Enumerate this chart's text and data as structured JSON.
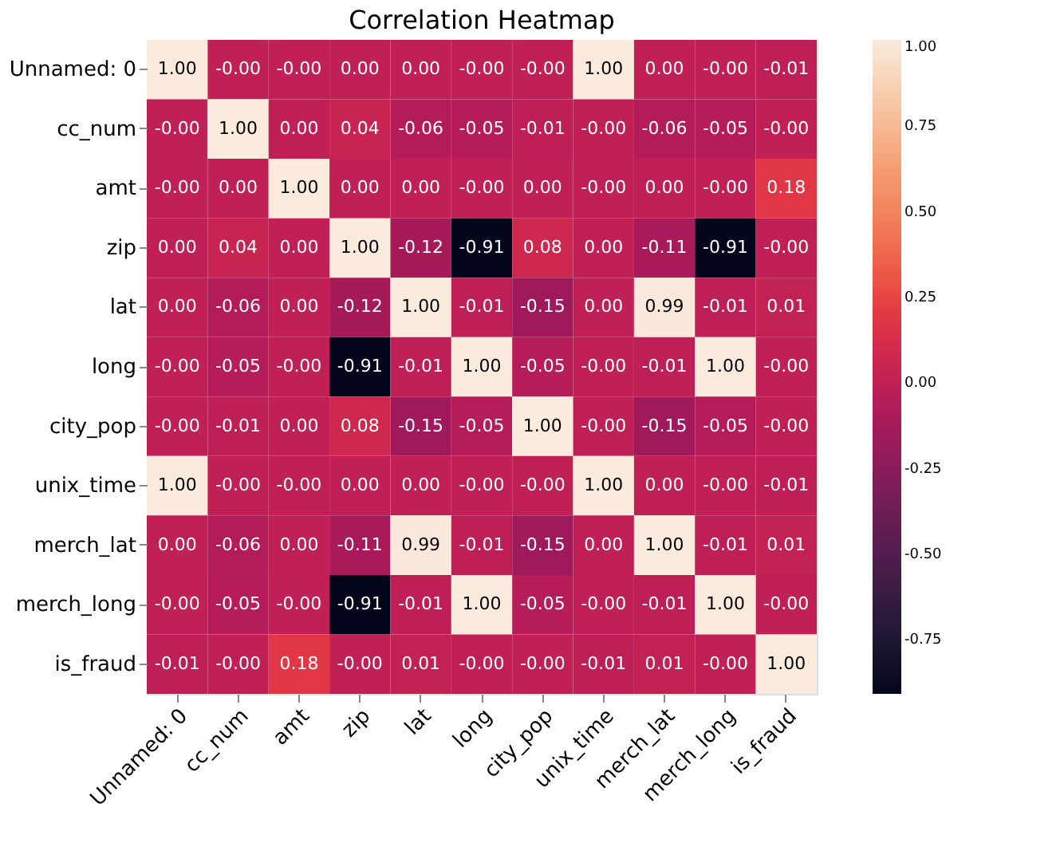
{
  "chart_data": {
    "type": "heatmap",
    "title": "Correlation Heatmap",
    "categories": [
      "Unnamed: 0",
      "cc_num",
      "amt",
      "zip",
      "lat",
      "long",
      "city_pop",
      "unix_time",
      "merch_lat",
      "merch_long",
      "is_fraud"
    ],
    "y_categories": [
      "Unnamed: 0",
      "cc_num",
      "amt",
      "zip",
      "lat",
      "long",
      "city_pop",
      "unix_time",
      "merch_lat",
      "merch_long",
      "is_fraud"
    ],
    "cells": [
      [
        1.0,
        -0.0,
        -0.0,
        0.0,
        0.0,
        -0.0,
        -0.0,
        1.0,
        0.0,
        -0.0,
        -0.01
      ],
      [
        -0.0,
        1.0,
        0.0,
        0.04,
        -0.06,
        -0.05,
        -0.01,
        -0.0,
        -0.06,
        -0.05,
        -0.0
      ],
      [
        -0.0,
        0.0,
        1.0,
        0.0,
        0.0,
        -0.0,
        0.0,
        -0.0,
        0.0,
        -0.0,
        0.18
      ],
      [
        0.0,
        0.04,
        0.0,
        1.0,
        -0.12,
        -0.91,
        0.08,
        0.0,
        -0.11,
        -0.91,
        -0.0
      ],
      [
        0.0,
        -0.06,
        0.0,
        -0.12,
        1.0,
        -0.01,
        -0.15,
        0.0,
        0.99,
        -0.01,
        0.01
      ],
      [
        -0.0,
        -0.05,
        -0.0,
        -0.91,
        -0.01,
        1.0,
        -0.05,
        -0.0,
        -0.01,
        1.0,
        -0.0
      ],
      [
        -0.0,
        -0.01,
        0.0,
        0.08,
        -0.15,
        -0.05,
        1.0,
        -0.0,
        -0.15,
        -0.05,
        -0.0
      ],
      [
        1.0,
        -0.0,
        -0.0,
        0.0,
        0.0,
        -0.0,
        -0.0,
        1.0,
        0.0,
        -0.0,
        -0.01
      ],
      [
        0.0,
        -0.06,
        0.0,
        -0.11,
        0.99,
        -0.01,
        -0.15,
        0.0,
        1.0,
        -0.01,
        0.01
      ],
      [
        -0.0,
        -0.05,
        -0.0,
        -0.91,
        -0.01,
        1.0,
        -0.05,
        -0.0,
        -0.01,
        1.0,
        -0.0
      ],
      [
        -0.01,
        -0.0,
        0.18,
        -0.0,
        0.01,
        -0.0,
        -0.0,
        -0.01,
        0.01,
        -0.0,
        1.0
      ]
    ],
    "cell_labels": [
      [
        "1.00",
        "-0.00",
        "-0.00",
        "0.00",
        "0.00",
        "-0.00",
        "-0.00",
        "1.00",
        "0.00",
        "-0.00",
        "-0.01"
      ],
      [
        "-0.00",
        "1.00",
        "0.00",
        "0.04",
        "-0.06",
        "-0.05",
        "-0.01",
        "-0.00",
        "-0.06",
        "-0.05",
        "-0.00"
      ],
      [
        "-0.00",
        "0.00",
        "1.00",
        "0.00",
        "0.00",
        "-0.00",
        "0.00",
        "-0.00",
        "0.00",
        "-0.00",
        "0.18"
      ],
      [
        "0.00",
        "0.04",
        "0.00",
        "1.00",
        "-0.12",
        "-0.91",
        "0.08",
        "0.00",
        "-0.11",
        "-0.91",
        "-0.00"
      ],
      [
        "0.00",
        "-0.06",
        "0.00",
        "-0.12",
        "1.00",
        "-0.01",
        "-0.15",
        "0.00",
        "0.99",
        "-0.01",
        "0.01"
      ],
      [
        "-0.00",
        "-0.05",
        "-0.00",
        "-0.91",
        "-0.01",
        "1.00",
        "-0.05",
        "-0.00",
        "-0.01",
        "1.00",
        "-0.00"
      ],
      [
        "-0.00",
        "-0.01",
        "0.00",
        "0.08",
        "-0.15",
        "-0.05",
        "1.00",
        "-0.00",
        "-0.15",
        "-0.05",
        "-0.00"
      ],
      [
        "1.00",
        "-0.00",
        "-0.00",
        "0.00",
        "0.00",
        "-0.00",
        "-0.00",
        "1.00",
        "0.00",
        "-0.00",
        "-0.01"
      ],
      [
        "0.00",
        "-0.06",
        "0.00",
        "-0.11",
        "0.99",
        "-0.01",
        "-0.15",
        "0.00",
        "1.00",
        "-0.01",
        "0.01"
      ],
      [
        "-0.00",
        "-0.05",
        "-0.00",
        "-0.91",
        "-0.01",
        "1.00",
        "-0.05",
        "-0.00",
        "-0.01",
        "1.00",
        "-0.00"
      ],
      [
        "-0.01",
        "-0.00",
        "0.18",
        "-0.00",
        "0.01",
        "-0.00",
        "-0.00",
        "-0.01",
        "0.01",
        "-0.00",
        "1.00"
      ]
    ],
    "clim": [
      -0.91,
      1.0
    ],
    "cticks": [
      {
        "value": 1.0,
        "label": "1.00"
      },
      {
        "value": 0.75,
        "label": "0.75"
      },
      {
        "value": 0.5,
        "label": "0.50"
      },
      {
        "value": 0.25,
        "label": "0.25"
      },
      {
        "value": 0.0,
        "label": "0.00"
      },
      {
        "value": -0.25,
        "label": "-0.25"
      },
      {
        "value": -0.5,
        "label": "-0.50"
      },
      {
        "value": -0.75,
        "label": "-0.75"
      }
    ]
  }
}
